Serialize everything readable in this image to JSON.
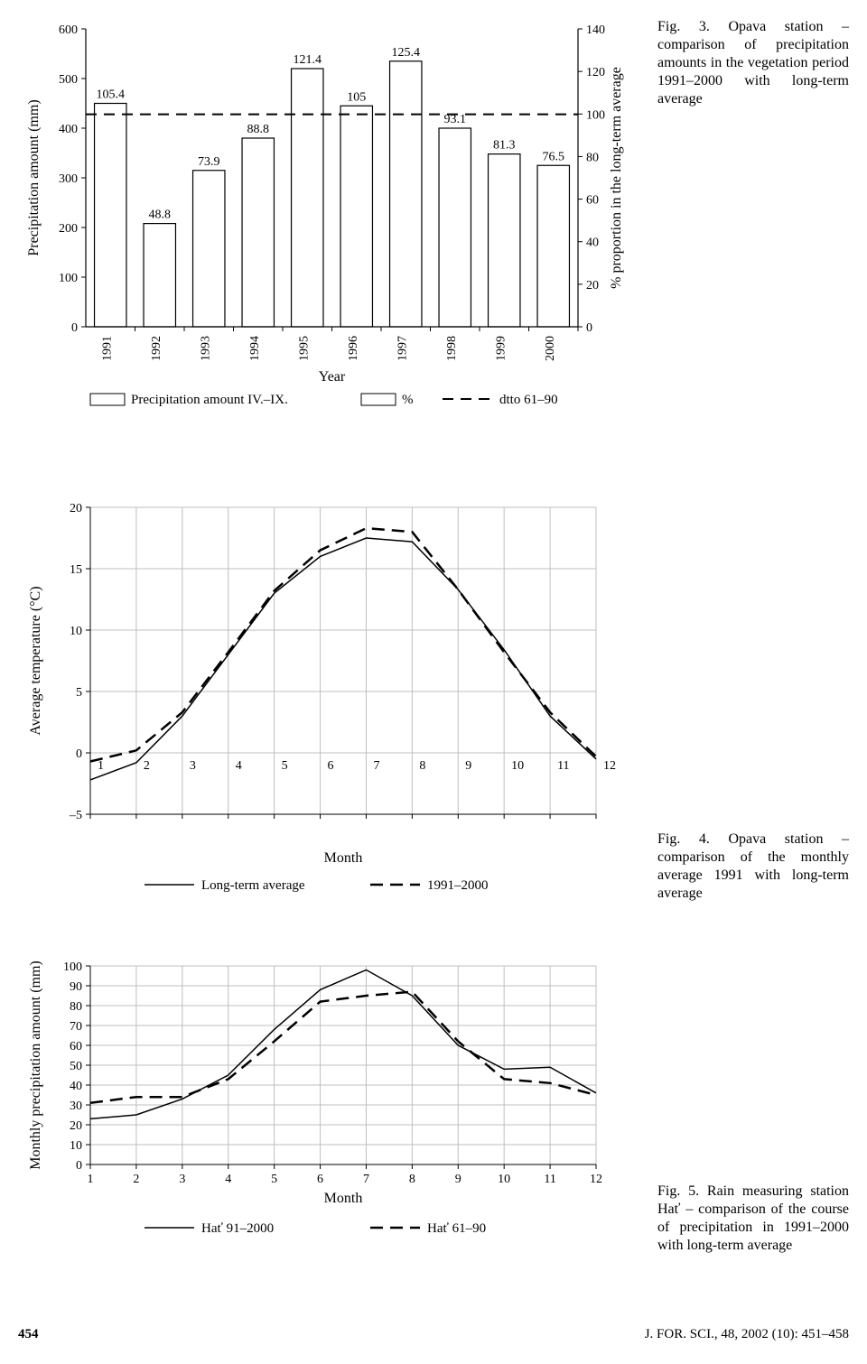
{
  "fig3": {
    "type": "bar",
    "caption": "Fig. 3. Opava station – comparison of precipitation amounts in the vegetation period 1991–2000 with long-term average",
    "years": [
      "1991",
      "1992",
      "1993",
      "1994",
      "1995",
      "1996",
      "1997",
      "1998",
      "1999",
      "2000"
    ],
    "bar_values": [
      450,
      208,
      315,
      380,
      520,
      445,
      535,
      400,
      348,
      325
    ],
    "bar_labels": [
      "105.4",
      "48.8",
      "73.9",
      "88.8",
      "121.4",
      "105",
      "125.4",
      "93.1",
      "81.3",
      "76.5"
    ],
    "left_axis_label": "Precipitation amount (mm)",
    "right_axis_label": "% proportion in the long-term average",
    "x_axis_label": "Year",
    "left_ylim": [
      0,
      600
    ],
    "left_ytick_step": 100,
    "right_ylim": [
      0,
      140
    ],
    "right_ytick_step": 20,
    "ref_line_y": 428,
    "legend": [
      "Precipitation amount IV.–IX.",
      "%",
      "dtto 61–90"
    ],
    "colors": {
      "bar_fill": "#ffffff",
      "bar_stroke": "#000000",
      "ref_line": "#000000",
      "axis": "#000000",
      "text": "#000000",
      "background": "#ffffff"
    },
    "fonts": {
      "tick": 14,
      "label": 16,
      "bar_label": 14,
      "legend": 15
    }
  },
  "fig4": {
    "type": "line",
    "caption": "Fig. 4. Opava station – comparison of the monthly average 1991 with long-term average",
    "months": [
      "1",
      "2",
      "3",
      "4",
      "5",
      "6",
      "7",
      "8",
      "9",
      "10",
      "11",
      "12"
    ],
    "series": [
      {
        "name": "Long-term average",
        "style": "solid",
        "width": 1.5,
        "values": [
          -2.2,
          -0.8,
          3.0,
          8.0,
          13.0,
          16.0,
          17.5,
          17.2,
          13.3,
          8.4,
          3.0,
          -0.5
        ]
      },
      {
        "name": "1991–2000",
        "style": "dash",
        "width": 2.5,
        "values": [
          -0.7,
          0.2,
          3.3,
          8.2,
          13.2,
          16.5,
          18.3,
          18.0,
          13.3,
          8.2,
          3.3,
          -0.3
        ]
      }
    ],
    "y_axis_label": "Average temperature (°C)",
    "x_axis_label": "Month",
    "ylim": [
      -5,
      20
    ],
    "ytick_step": 5,
    "colors": {
      "line": "#000000",
      "grid": "#bfbfbf",
      "axis": "#000000",
      "text": "#000000",
      "background": "#ffffff"
    },
    "fonts": {
      "tick": 14,
      "label": 16,
      "legend": 15
    }
  },
  "fig5": {
    "type": "line",
    "caption": "Fig. 5. Rain measuring station Hať – comparison of the course of precipitation in 1991–2000 with long-term average",
    "months": [
      "1",
      "2",
      "3",
      "4",
      "5",
      "6",
      "7",
      "8",
      "9",
      "10",
      "11",
      "12"
    ],
    "series": [
      {
        "name": "Hať 91–2000",
        "style": "solid",
        "width": 1.5,
        "values": [
          23,
          25,
          33,
          45,
          68,
          88,
          98,
          85,
          60,
          48,
          49,
          36
        ]
      },
      {
        "name": "Hať 61–90",
        "style": "dash",
        "width": 2.5,
        "values": [
          31,
          34,
          34,
          43,
          62,
          82,
          85,
          87,
          62,
          43,
          41,
          35
        ]
      }
    ],
    "y_axis_label": "Monthly precipitation amount (mm)",
    "x_axis_label": "Month",
    "ylim": [
      0,
      100
    ],
    "ytick_step": 10,
    "colors": {
      "line": "#000000",
      "grid": "#bfbfbf",
      "axis": "#000000",
      "text": "#000000",
      "background": "#ffffff"
    },
    "fonts": {
      "tick": 14,
      "label": 16,
      "legend": 15
    }
  },
  "footer": {
    "page": "454",
    "citation": "J. FOR. SCI., 48, 2002 (10): 451–458"
  }
}
